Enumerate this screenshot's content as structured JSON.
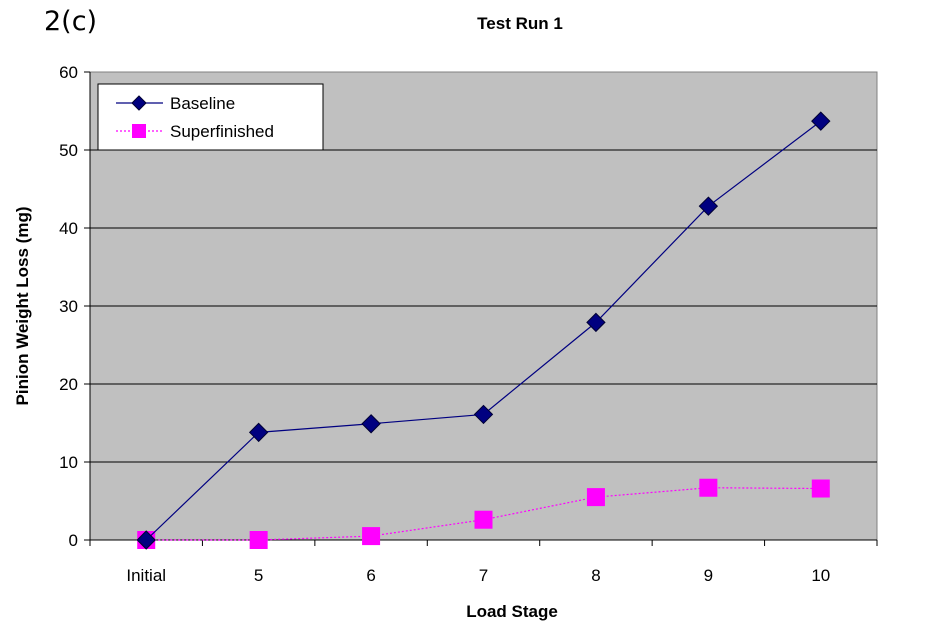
{
  "figure_label": "2(c)",
  "chart_data": {
    "type": "line",
    "title": "Test Run 1",
    "xlabel": "Load Stage",
    "ylabel": "Pinion Weight Loss (mg)",
    "categories": [
      "Initial",
      "5",
      "6",
      "7",
      "8",
      "9",
      "10"
    ],
    "ylim": [
      0,
      60
    ],
    "yticks": [
      0,
      10,
      20,
      30,
      40,
      50,
      60
    ],
    "grid": true,
    "legend_position": "top-left",
    "plot_background": "#c0c0c0",
    "series": [
      {
        "name": "Baseline",
        "values": [
          0,
          13.8,
          14.9,
          16.1,
          27.9,
          42.8,
          53.7
        ],
        "color": "#000080",
        "marker": "diamond",
        "line_style": "solid"
      },
      {
        "name": "Superfinished",
        "values": [
          0,
          0,
          0.5,
          2.6,
          5.5,
          6.7,
          6.6
        ],
        "color": "#ff00ff",
        "marker": "square",
        "line_style": "dotted"
      }
    ]
  }
}
